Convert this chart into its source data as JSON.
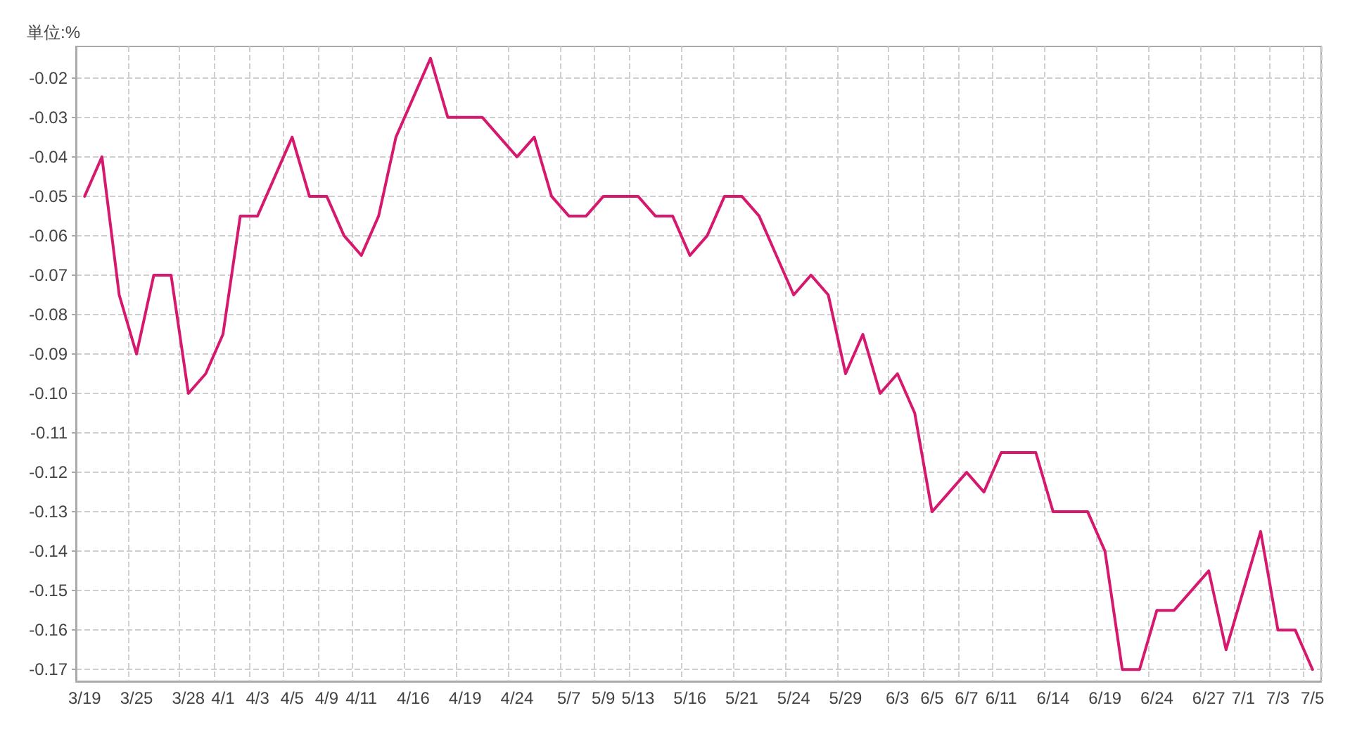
{
  "chart_data": {
    "type": "line",
    "ylabel": "単位:%",
    "categories": [
      "3/19",
      null,
      null,
      "3/25",
      null,
      null,
      "3/28",
      null,
      "4/1",
      null,
      "4/3",
      null,
      "4/5",
      null,
      "4/9",
      null,
      "4/11",
      null,
      null,
      "4/16",
      null,
      null,
      "4/19",
      null,
      null,
      "4/24",
      null,
      null,
      "5/7",
      null,
      "5/9",
      null,
      "5/13",
      null,
      null,
      "5/16",
      null,
      null,
      "5/21",
      null,
      null,
      "5/24",
      null,
      null,
      "5/29",
      null,
      null,
      "6/3",
      null,
      "6/5",
      null,
      "6/7",
      null,
      "6/11",
      null,
      null,
      "6/14",
      null,
      null,
      "6/19",
      null,
      null,
      "6/24",
      null,
      null,
      "6/27",
      null,
      "7/1",
      null,
      "7/3",
      null,
      "7/5"
    ],
    "series": [
      {
        "color": "#d6196e",
        "values": [
          -0.05,
          -0.04,
          -0.075,
          -0.09,
          -0.07,
          -0.07,
          -0.1,
          -0.095,
          -0.085,
          -0.055,
          -0.055,
          -0.045,
          -0.035,
          -0.05,
          -0.05,
          -0.06,
          -0.065,
          -0.055,
          -0.035,
          -0.025,
          -0.015,
          -0.03,
          -0.03,
          -0.03,
          -0.035,
          -0.04,
          -0.035,
          -0.05,
          -0.055,
          -0.055,
          -0.05,
          -0.05,
          -0.05,
          -0.055,
          -0.055,
          -0.065,
          -0.06,
          -0.05,
          -0.05,
          -0.055,
          -0.065,
          -0.075,
          -0.07,
          -0.075,
          -0.095,
          -0.085,
          -0.1,
          -0.095,
          -0.105,
          -0.13,
          -0.125,
          -0.12,
          -0.125,
          -0.115,
          -0.115,
          -0.115,
          -0.13,
          -0.13,
          -0.13,
          -0.14,
          -0.17,
          -0.17,
          -0.155,
          -0.155,
          -0.15,
          -0.145,
          -0.165,
          -0.15,
          -0.135,
          -0.16,
          -0.16,
          -0.17
        ]
      }
    ],
    "ylim": [
      -0.173,
      -0.012
    ],
    "yticks": [
      -0.17,
      -0.16,
      -0.15,
      -0.14,
      -0.13,
      -0.12,
      -0.11,
      {
        "value": -0.1,
        "label": "-0.10"
      },
      -0.09,
      -0.08,
      -0.07,
      -0.06,
      -0.05,
      -0.04,
      -0.03,
      -0.02
    ],
    "grid": true,
    "marker": "none",
    "line_style": "solid"
  }
}
